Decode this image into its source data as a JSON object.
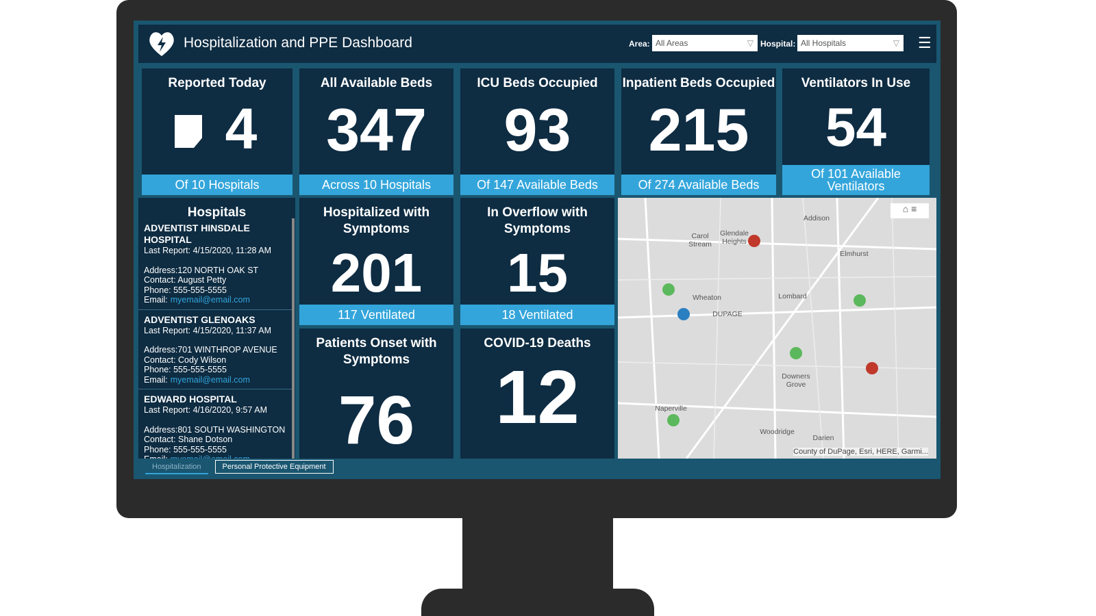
{
  "header": {
    "title": "Hospitalization and PPE Dashboard",
    "filters": [
      {
        "label": "Area:",
        "value": "All Areas"
      },
      {
        "label": "Hospital:",
        "value": "All Hospitals"
      }
    ]
  },
  "indicators": [
    {
      "title": "Reported Today",
      "value": 4,
      "caption": "Of 10 Hospitals"
    },
    {
      "title": "All Available Beds",
      "value": 347,
      "caption": "Across 10 Hospitals"
    },
    {
      "title": "ICU Beds Occupied",
      "value": 93,
      "caption": "Of 147 Available Beds"
    },
    {
      "title": "Inpatient Beds Occupied",
      "value": 215,
      "caption": "Of 274 Available Beds"
    },
    {
      "title": "Ventilators In Use",
      "value": 54,
      "caption": "Of 101 Available Ventilators"
    },
    {
      "title": "Hospitalized with Symptoms",
      "value": 201,
      "caption": "117 Ventilated"
    },
    {
      "title": "In Overflow with Symptoms",
      "value": 15,
      "caption": "18 Ventilated"
    },
    {
      "title": "Patients Onset with Symptoms",
      "value": 76
    },
    {
      "title": "COVID-19 Deaths",
      "value": 12
    }
  ],
  "hospital_list": {
    "title": "Hospitals",
    "items": [
      {
        "name": "ADVENTIST HINSDALE HOSPITAL",
        "last_report": "Last Report: 4/15/2020, 11:28 AM",
        "address": "Address:120 NORTH OAK ST",
        "contact": "Contact: August Petty",
        "phone": "Phone: 555-555-5555",
        "email_label": "Email:",
        "email": "myemail@email.com"
      },
      {
        "name": "ADVENTIST GLENOAKS",
        "last_report": "Last Report: 4/15/2020, 11:37 AM",
        "address": "Address:701 WINTHROP AVENUE",
        "contact": "Contact: Cody Wilson",
        "phone": "Phone: 555-555-5555",
        "email_label": "Email:",
        "email": "myemail@email.com"
      },
      {
        "name": "EDWARD HOSPITAL",
        "last_report": "Last Report: 4/16/2020, 9:57 AM",
        "address": "Address:801 SOUTH WASHINGTON",
        "contact": "Contact: Shane Dotson",
        "phone": "Phone: 555-555-5555",
        "email_label": "Email:",
        "email": "myemail@email.com"
      }
    ]
  },
  "map": {
    "labels": [
      "Addison",
      "Carol Stream",
      "Glendale Heights",
      "Elmhurst",
      "Wheaton",
      "Lombard",
      "DUPAGE",
      "Downers Grove",
      "Naperville",
      "Woodridge",
      "Darien"
    ],
    "attribution": "County of DuPage, Esri, HERE, Garmi..."
  },
  "tabs": [
    "Hospitalization",
    "Personal Protective Equipment"
  ]
}
